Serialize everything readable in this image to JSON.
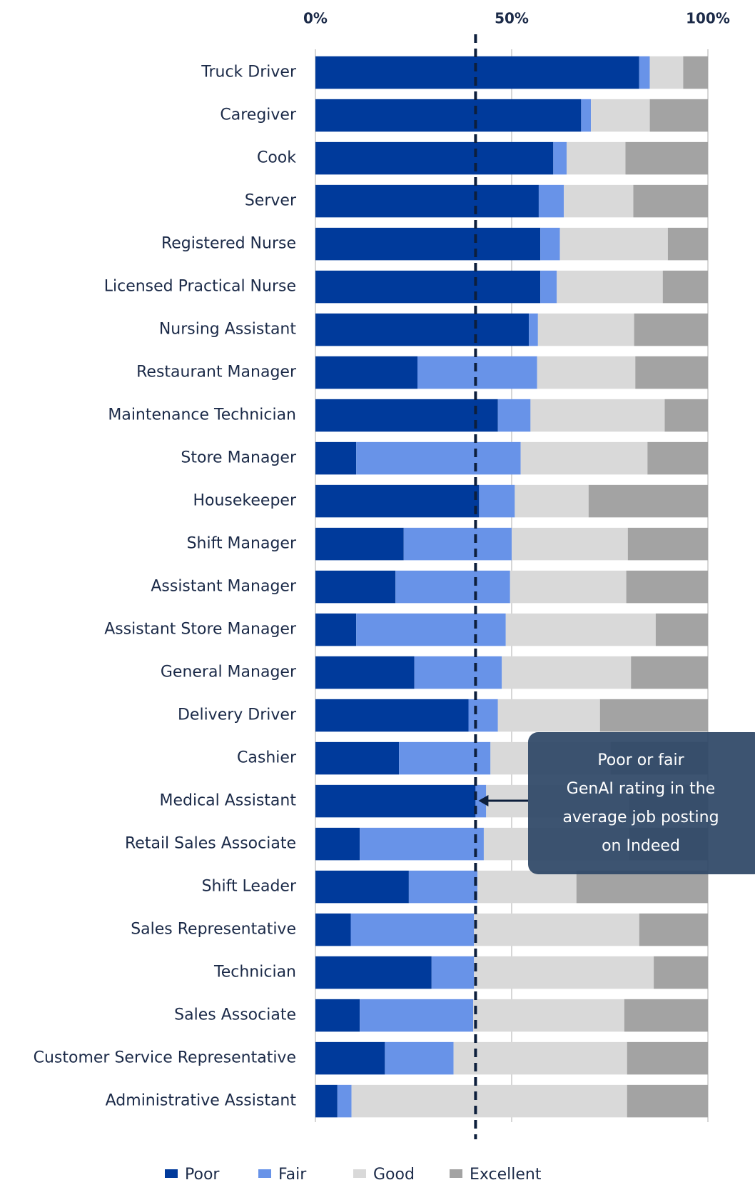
{
  "chart_data": {
    "type": "stacked_barh",
    "categories": [
      "Truck Driver",
      "Caregiver",
      "Cook",
      "Server",
      "Registered Nurse",
      "Licensed Practical Nurse",
      "Nursing Assistant",
      "Restaurant Manager",
      "Maintenance Technician",
      "Store Manager",
      "Housekeeper",
      "Shift Manager",
      "Assistant Manager",
      "Assistant Store Manager",
      "General Manager",
      "Delivery Driver",
      "Cashier",
      "Medical Assistant",
      "Retail Sales Associate",
      "Shift Leader",
      "Sales Representative",
      "Technician",
      "Sales Associate",
      "Customer Service Representative",
      "Administrative Assistant"
    ],
    "series": [
      {
        "name": "Poor",
        "color": "#003a9b",
        "values": [
          82.5,
          67.7,
          60.6,
          56.9,
          57.3,
          57.3,
          54.4,
          26.0,
          46.5,
          10.4,
          41.7,
          22.5,
          20.4,
          10.4,
          25.2,
          39.0,
          21.3,
          40.8,
          11.3,
          23.8,
          9.0,
          29.6,
          11.3,
          17.7,
          5.6
        ]
      },
      {
        "name": "Fair",
        "color": "#6893e8",
        "values": [
          2.7,
          2.5,
          3.4,
          6.4,
          5.0,
          4.2,
          2.3,
          30.5,
          8.3,
          41.9,
          9.1,
          27.5,
          29.2,
          38.1,
          22.3,
          7.5,
          23.3,
          2.7,
          31.6,
          17.5,
          31.4,
          10.8,
          28.9,
          17.5,
          3.6
        ]
      },
      {
        "name": "Good",
        "color": "#d9d9d9",
        "values": [
          8.5,
          15.0,
          15.0,
          17.7,
          27.5,
          27.0,
          24.5,
          25.0,
          34.2,
          32.3,
          18.8,
          29.6,
          29.6,
          38.2,
          32.9,
          26.0,
          30.6,
          36.5,
          37.1,
          25.2,
          42.1,
          45.8,
          38.5,
          44.2,
          70.2
        ]
      },
      {
        "name": "Excellent",
        "color": "#a3a3a3",
        "values": [
          6.3,
          14.8,
          21.0,
          19.0,
          10.2,
          11.5,
          18.8,
          18.5,
          11.0,
          15.4,
          30.4,
          20.4,
          20.8,
          13.3,
          19.6,
          27.5,
          24.8,
          20.0,
          20.0,
          33.5,
          17.5,
          13.8,
          21.3,
          20.6,
          20.6
        ]
      }
    ],
    "xlim": [
      0,
      100
    ],
    "xticks": [
      {
        "value": 0,
        "label": "0%"
      },
      {
        "value": 50,
        "label": "50%"
      },
      {
        "value": 100,
        "label": "100%"
      }
    ],
    "grid": true,
    "reference_value": 40.8,
    "annotation": [
      "Poor or fair",
      "GenAI rating in the",
      "average job posting",
      "on Indeed"
    ],
    "legend": "bottom"
  }
}
